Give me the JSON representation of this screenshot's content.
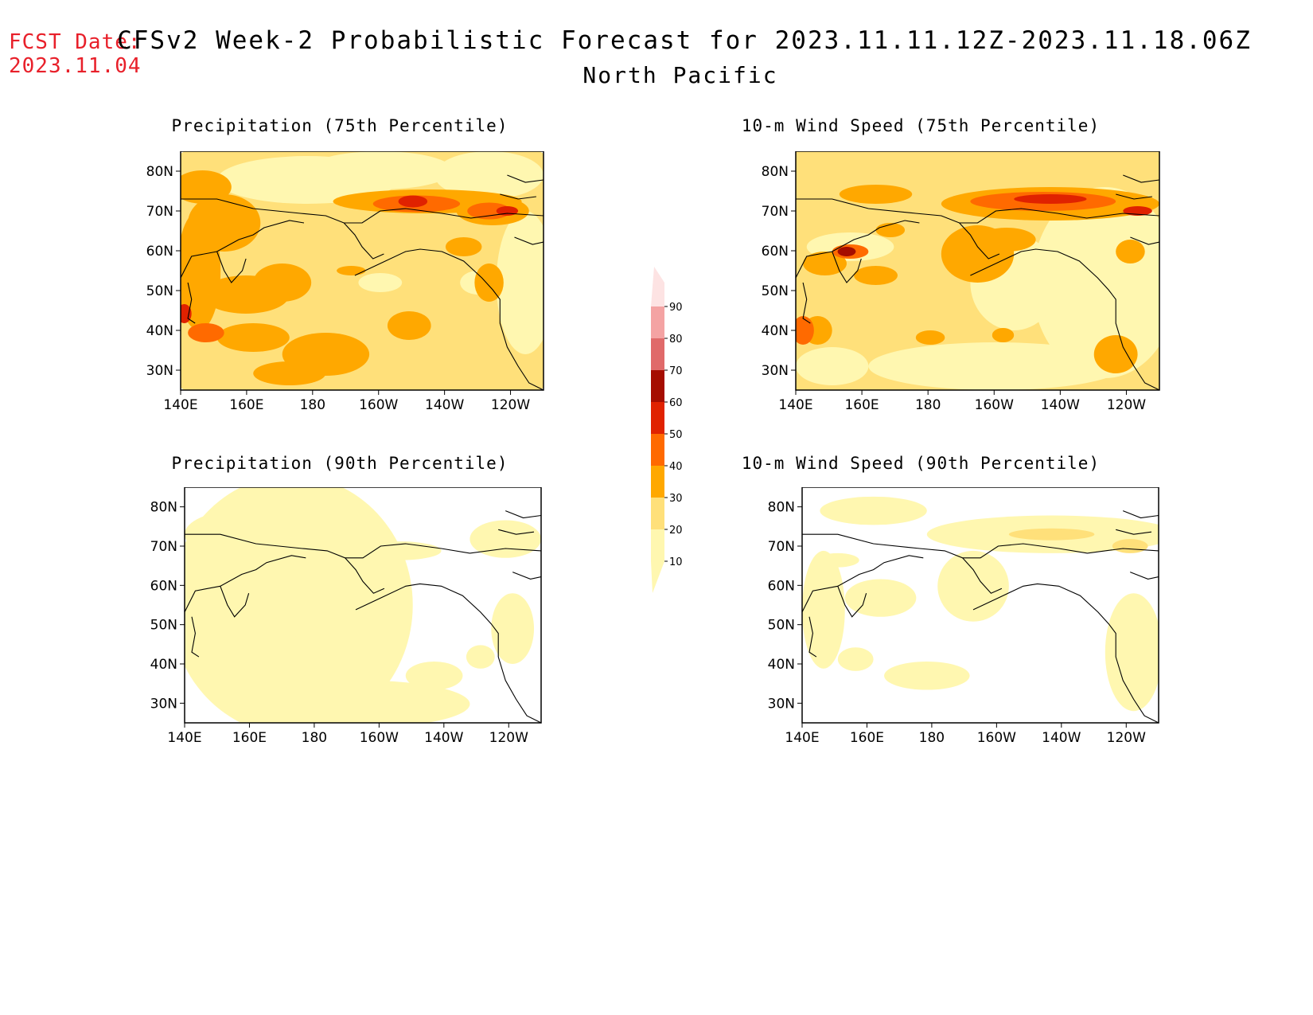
{
  "header": {
    "fcst_label": "FCST Date:",
    "fcst_date": "2023.11.04",
    "title": "CFSv2 Week-2 Probabilistic Forecast for 2023.11.11.12Z-2023.11.18.06Z",
    "subtitle": "North Pacific"
  },
  "lat_labels": [
    "80N",
    "70N",
    "60N",
    "50N",
    "40N",
    "30N"
  ],
  "lon_labels": [
    "140E",
    "160E",
    "180",
    "160W",
    "140W",
    "120W"
  ],
  "panels": [
    {
      "title": "Precipitation (75th Percentile)"
    },
    {
      "title": "10-m Wind Speed (75th Percentile)"
    },
    {
      "title": "Precipitation (90th Percentile)"
    },
    {
      "title": "10-m Wind Speed (90th Percentile)"
    }
  ],
  "colorbar": {
    "labels": [
      "10",
      "20",
      "30",
      "40",
      "50",
      "60",
      "70",
      "80",
      "90"
    ],
    "colors": [
      "#fff7b0",
      "#ffe07a",
      "#ffa800",
      "#ff6a00",
      "#e02200",
      "#a50d00",
      "#e06a6a",
      "#f4a3a3",
      "#fde3e3"
    ]
  },
  "palette": {
    "white": "#ffffff",
    "c10": "#fff7b0",
    "c20": "#ffe07a",
    "c30": "#ffa800",
    "c40": "#ff6a00",
    "c50": "#e02200",
    "c60": "#a50d00",
    "fcst_red": "#e8202a"
  }
}
